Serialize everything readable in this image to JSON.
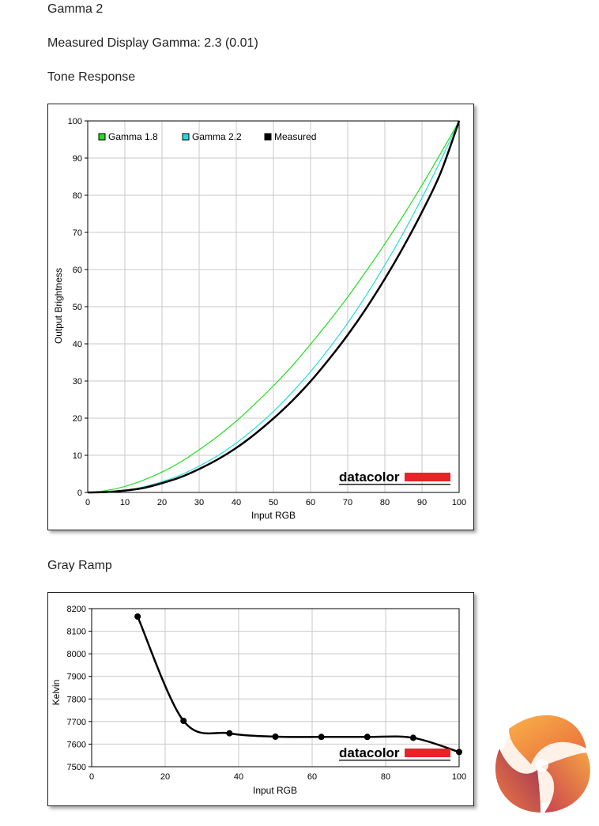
{
  "page": {
    "heading": "Gamma 2",
    "measured_gamma": "Measured Display Gamma: 2.3 (0.01)",
    "tone_title": "Tone Response",
    "gray_title": "Gray Ramp",
    "brand_logo_text": "datacolor",
    "brand_color": "#e8232a"
  },
  "chart_data": [
    {
      "type": "line",
      "xlabel": "Input RGB",
      "ylabel": "Output Brightness",
      "xlim": [
        0,
        100
      ],
      "ylim": [
        0,
        100
      ],
      "xticks": [
        0,
        10,
        20,
        30,
        40,
        50,
        60,
        70,
        80,
        90,
        100
      ],
      "yticks": [
        0,
        10,
        20,
        30,
        40,
        50,
        60,
        70,
        80,
        90,
        100
      ],
      "grid": true,
      "legend": "top-left",
      "x": [
        0,
        5,
        10,
        15,
        20,
        25,
        30,
        35,
        40,
        45,
        50,
        55,
        60,
        65,
        70,
        75,
        80,
        85,
        90,
        95,
        100
      ],
      "series": [
        {
          "name": "Gamma 1.8",
          "color": "#22dd22",
          "values": [
            0,
            0.5,
            1.6,
            3.3,
            5.5,
            8.2,
            11.5,
            15.1,
            19.2,
            23.8,
            28.7,
            34.0,
            39.9,
            46.1,
            52.6,
            59.6,
            66.9,
            74.6,
            82.7,
            91.2,
            100
          ]
        },
        {
          "name": "Gamma 2.2",
          "color": "#22dddd",
          "values": [
            0,
            0.1,
            0.6,
            1.5,
            2.9,
            4.7,
            7.1,
            9.9,
            13.3,
            17.3,
            21.8,
            26.9,
            32.5,
            38.8,
            45.6,
            53.1,
            61.2,
            69.9,
            79.3,
            89.3,
            100
          ]
        },
        {
          "name": "Measured",
          "color": "#000000",
          "values": [
            0,
            0.1,
            0.5,
            1.2,
            2.5,
            4.1,
            6.3,
            8.9,
            12.0,
            15.7,
            19.9,
            24.6,
            29.9,
            35.9,
            42.4,
            49.6,
            57.5,
            66.1,
            75.5,
            86.0,
            100
          ]
        }
      ]
    },
    {
      "type": "line",
      "xlabel": "Input RGB",
      "ylabel": "Kelvin",
      "xlim": [
        0,
        100
      ],
      "ylim": [
        7500,
        8200
      ],
      "xticks": [
        0,
        20,
        40,
        60,
        80,
        100
      ],
      "yticks": [
        7500,
        7600,
        7700,
        7800,
        7900,
        8000,
        8100,
        8200
      ],
      "grid": true,
      "series": [
        {
          "name": "",
          "color": "#000000",
          "x": [
            12.5,
            25,
            37.5,
            50,
            62.5,
            75,
            87.5,
            100
          ],
          "values": [
            8165,
            7703,
            7648,
            7633,
            7632,
            7632,
            7628,
            7565
          ]
        }
      ]
    }
  ]
}
